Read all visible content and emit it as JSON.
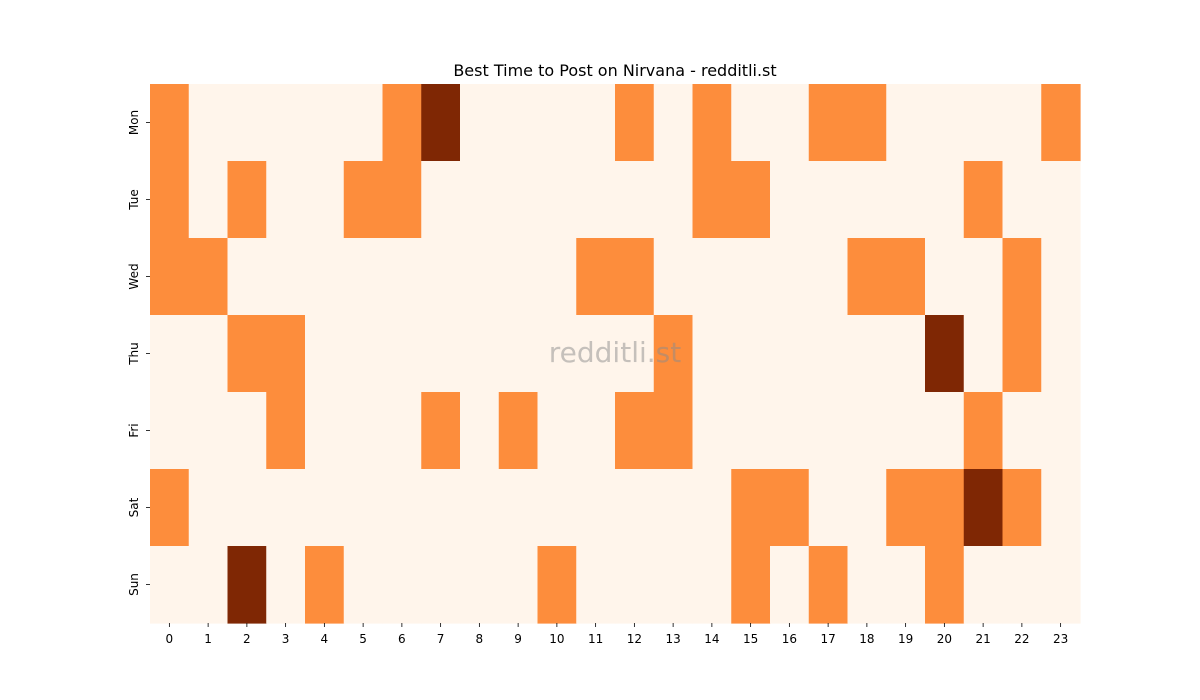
{
  "chart_data": {
    "type": "heatmap",
    "title": "Best Time to Post on Nirvana - redditli.st",
    "watermark": "redditli.st",
    "xlabel": "",
    "ylabel": "",
    "x_categories": [
      "0",
      "1",
      "2",
      "3",
      "4",
      "5",
      "6",
      "7",
      "8",
      "9",
      "10",
      "11",
      "12",
      "13",
      "14",
      "15",
      "16",
      "17",
      "18",
      "19",
      "20",
      "21",
      "22",
      "23"
    ],
    "y_categories": [
      "Mon",
      "Tue",
      "Wed",
      "Thu",
      "Fri",
      "Sat",
      "Sun"
    ],
    "values": [
      [
        1,
        0,
        0,
        0,
        0,
        0,
        1,
        2,
        0,
        0,
        0,
        0,
        1,
        0,
        1,
        0,
        0,
        1,
        1,
        0,
        0,
        0,
        0,
        1
      ],
      [
        1,
        0,
        1,
        0,
        0,
        1,
        1,
        0,
        0,
        0,
        0,
        0,
        0,
        0,
        1,
        1,
        0,
        0,
        0,
        0,
        0,
        1,
        0,
        0
      ],
      [
        1,
        1,
        0,
        0,
        0,
        0,
        0,
        0,
        0,
        0,
        0,
        1,
        1,
        0,
        0,
        0,
        0,
        0,
        1,
        1,
        0,
        0,
        1,
        0
      ],
      [
        0,
        0,
        1,
        1,
        0,
        0,
        0,
        0,
        0,
        0,
        0,
        0,
        0,
        1,
        0,
        0,
        0,
        0,
        0,
        0,
        2,
        0,
        1,
        0
      ],
      [
        0,
        0,
        0,
        1,
        0,
        0,
        0,
        1,
        0,
        1,
        0,
        0,
        1,
        1,
        0,
        0,
        0,
        0,
        0,
        0,
        0,
        1,
        0,
        0
      ],
      [
        1,
        0,
        0,
        0,
        0,
        0,
        0,
        0,
        0,
        0,
        0,
        0,
        0,
        0,
        0,
        1,
        1,
        0,
        0,
        1,
        1,
        2,
        1,
        0
      ],
      [
        0,
        0,
        2,
        0,
        1,
        0,
        0,
        0,
        0,
        0,
        1,
        0,
        0,
        0,
        0,
        1,
        0,
        1,
        0,
        0,
        1,
        0,
        0,
        0
      ]
    ],
    "value_range": [
      0,
      2
    ],
    "colormap": [
      "#fff5eb",
      "#fd8d3c",
      "#7f2704"
    ],
    "legend": "none",
    "grid": false
  }
}
